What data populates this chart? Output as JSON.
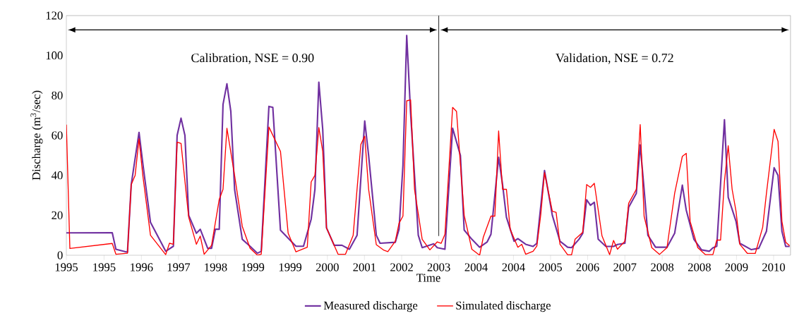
{
  "chart_data": {
    "type": "line",
    "xlabel": "Time",
    "ylabel": "Discharge  (m$^{3}$/sec)",
    "xlim": [
      "1995-02-01",
      "2010-11-09"
    ],
    "ylim": [
      0,
      120
    ],
    "xticks": [
      {
        "value": "1995-02-01",
        "label": "1995"
      },
      {
        "value": "1995-11-28",
        "label": "1995"
      },
      {
        "value": "1996-09-20",
        "label": "1996"
      },
      {
        "value": "1997-07-12",
        "label": "1997"
      },
      {
        "value": "1998-05-03",
        "label": "1998"
      },
      {
        "value": "1999-02-23",
        "label": "1999"
      },
      {
        "value": "1999-12-17",
        "label": "1999"
      },
      {
        "value": "2000-10-08",
        "label": "2000"
      },
      {
        "value": "2001-07-30",
        "label": "2001"
      },
      {
        "value": "2002-05-22",
        "label": "2002"
      },
      {
        "value": "2003-03-13",
        "label": "2003"
      },
      {
        "value": "2004-01-04",
        "label": "2004"
      },
      {
        "value": "2004-10-27",
        "label": "2004"
      },
      {
        "value": "2005-08-18",
        "label": "2005"
      },
      {
        "value": "2006-06-09",
        "label": "2006"
      },
      {
        "value": "2007-04-01",
        "label": "2007"
      },
      {
        "value": "2008-01-23",
        "label": "2008"
      },
      {
        "value": "2008-11-14",
        "label": "2008"
      },
      {
        "value": "2009-09-05",
        "label": "2009"
      },
      {
        "value": "2010-06-27",
        "label": "2010"
      }
    ],
    "yticks": [
      0,
      20,
      40,
      60,
      80,
      100,
      120
    ],
    "grid": false,
    "legend": "bottom",
    "marker": "none",
    "line_style": "solid",
    "ref_lines": [
      {
        "axis": "x",
        "value": "2003-03-13"
      }
    ],
    "annotations": [
      "Calibration,  NSE = 0.90",
      "Validation,  NSE = 0.72"
    ],
    "series": [
      {
        "name": "Measured discharge",
        "color": "#7030a0",
        "x": [
          "1995-02",
          "1996-02",
          "1996-03",
          "1996-06",
          "1996-07",
          "1996-09",
          "1996-10",
          "1996-12",
          "1997-04",
          "1997-06",
          "1997-07",
          "1997-08",
          "1997-09",
          "1997-10",
          "1997-12",
          "1998-01",
          "1998-03",
          "1998-04",
          "1998-05",
          "1998-06",
          "1998-07",
          "1998-08",
          "1998-09",
          "1998-10",
          "1998-12",
          "1999-02",
          "1999-04",
          "1999-05",
          "1999-07",
          "1999-08",
          "1999-10",
          "2000-02",
          "2000-04",
          "2000-06",
          "2000-07",
          "2000-08",
          "2000-09",
          "2000-10",
          "2000-12",
          "2001-02",
          "2001-04",
          "2001-06",
          "2001-08",
          "2001-09",
          "2001-11",
          "2001-12",
          "2002-04",
          "2002-05",
          "2002-06",
          "2002-07",
          "2002-08",
          "2002-10",
          "2002-11",
          "2003-02",
          "2003-03",
          "2003-05",
          "2003-06",
          "2003-07",
          "2003-09",
          "2003-10",
          "2003-12",
          "2004-02",
          "2004-04",
          "2004-05",
          "2004-07",
          "2004-08",
          "2004-09",
          "2004-11",
          "2004-12",
          "2005-02",
          "2005-04",
          "2005-05",
          "2005-07",
          "2005-09",
          "2005-11",
          "2006-01",
          "2006-02",
          "2006-04",
          "2006-05",
          "2006-06",
          "2006-07",
          "2006-08",
          "2006-09",
          "2006-11",
          "2007-01",
          "2007-02",
          "2007-04",
          "2007-05",
          "2007-07",
          "2007-08",
          "2007-09",
          "2007-10",
          "2007-12",
          "2008-03",
          "2008-05",
          "2008-07",
          "2008-08",
          "2008-10",
          "2008-12",
          "2009-02",
          "2009-03",
          "2009-04",
          "2009-06",
          "2009-07",
          "2009-09",
          "2009-10",
          "2010-01",
          "2010-03",
          "2010-05",
          "2010-07",
          "2010-08",
          "2010-09",
          "2010-10",
          "2010-11"
        ],
        "values": [
          11.2,
          11.3,
          3,
          1.5,
          35.4,
          61.5,
          46,
          16.5,
          2,
          4.5,
          60,
          68.6,
          60,
          20,
          11,
          13,
          3.5,
          3.5,
          13,
          13,
          75.5,
          85.8,
          72,
          33,
          8,
          4.5,
          1,
          2,
          74.5,
          74,
          12.5,
          4.5,
          4.5,
          18,
          33,
          86.6,
          63,
          13.7,
          5,
          5,
          3,
          10,
          67.2,
          50,
          10,
          6,
          6.5,
          13,
          45,
          110,
          71,
          10,
          3.8,
          5.7,
          3.8,
          3,
          34,
          63.6,
          50,
          12.6,
          8,
          4,
          6.7,
          10.5,
          49,
          35.5,
          19,
          7,
          8.3,
          5.5,
          4.4,
          6,
          42.4,
          20,
          7,
          4,
          3.8,
          8,
          11,
          27.8,
          25,
          26.5,
          8,
          4.4,
          4.4,
          5.4,
          6,
          24,
          31,
          55.2,
          33,
          10,
          4,
          4,
          11,
          35.1,
          22.6,
          8,
          2.7,
          2,
          3.7,
          4.5,
          67.8,
          29,
          17,
          6,
          2.8,
          3.5,
          12,
          43.8,
          40,
          12,
          4.4,
          4.4
        ]
      },
      {
        "name": "Simulated discharge",
        "color": "#ff0000",
        "x": [
          "1995-02",
          "1995-03",
          "1996-02",
          "1996-03",
          "1996-06",
          "1996-07",
          "1996-08",
          "1996-09",
          "1996-10",
          "1996-12",
          "1997-04",
          "1997-05",
          "1997-06",
          "1997-07",
          "1997-08",
          "1997-10",
          "1997-12",
          "1998-01",
          "1998-02",
          "1998-04",
          "1998-06",
          "1998-07",
          "1998-08",
          "1998-10",
          "1998-12",
          "1999-02",
          "1999-04",
          "1999-05",
          "1999-07",
          "1999-10",
          "1999-12",
          "2000-02",
          "2000-05",
          "2000-06",
          "2000-07",
          "2000-08",
          "2000-09",
          "2000-10",
          "2001-01",
          "2001-03",
          "2001-05",
          "2001-07",
          "2001-08",
          "2001-09",
          "2001-11",
          "2002-01",
          "2002-02",
          "2002-04",
          "2002-05",
          "2002-06",
          "2002-07",
          "2002-08",
          "2002-09",
          "2002-11",
          "2003-01",
          "2003-03",
          "2003-04",
          "2003-05",
          "2003-07",
          "2003-08",
          "2003-10",
          "2003-12",
          "2004-02",
          "2004-03",
          "2004-05",
          "2004-06",
          "2004-07",
          "2004-08",
          "2004-09",
          "2004-10",
          "2004-12",
          "2005-01",
          "2005-02",
          "2005-04",
          "2005-05",
          "2005-06",
          "2005-07",
          "2005-09",
          "2005-10",
          "2005-11",
          "2006-01",
          "2006-02",
          "2006-03",
          "2006-05",
          "2006-06",
          "2006-07",
          "2006-08",
          "2006-10",
          "2006-12",
          "2007-01",
          "2007-02",
          "2007-04",
          "2007-05",
          "2007-07",
          "2007-08",
          "2007-09",
          "2007-11",
          "2008-01",
          "2008-03",
          "2008-05",
          "2008-07",
          "2008-08",
          "2008-09",
          "2008-11",
          "2009-01",
          "2009-03",
          "2009-04",
          "2009-05",
          "2009-06",
          "2009-07",
          "2009-08",
          "2009-09",
          "2009-10",
          "2009-12",
          "2010-02",
          "2010-04",
          "2010-05",
          "2010-07",
          "2010-08",
          "2010-09",
          "2010-10",
          "2010-11"
        ],
        "values": [
          65.4,
          3.4,
          5.9,
          0.5,
          1,
          35.4,
          40,
          58.3,
          40,
          10,
          0.3,
          6,
          5.5,
          56.6,
          56,
          19,
          5.5,
          9.6,
          0.5,
          5,
          28,
          33,
          63.6,
          40,
          14.5,
          3.5,
          0,
          0.5,
          64.2,
          52,
          11,
          1.7,
          4,
          36.7,
          40,
          63.9,
          52,
          13.7,
          0.5,
          0.5,
          10,
          55.4,
          59.6,
          33,
          5.3,
          2.5,
          1.8,
          7,
          16,
          19.6,
          77.3,
          77.8,
          33,
          8,
          2.7,
          6.7,
          6,
          10.5,
          74,
          72,
          20,
          3,
          0,
          9,
          19.6,
          19.6,
          62.2,
          33,
          33,
          13,
          4,
          5.5,
          0.5,
          2,
          4.6,
          20.3,
          41.3,
          22,
          21.5,
          5.5,
          0.2,
          0.2,
          8,
          11.5,
          35.4,
          34,
          36,
          9.7,
          0.3,
          7.4,
          3,
          7,
          26,
          33,
          65.4,
          19.5,
          3.8,
          0.4,
          3.8,
          31,
          49.5,
          51,
          17,
          3.8,
          0.3,
          0.3,
          7.6,
          7.6,
          37,
          54.8,
          33,
          22,
          5.5,
          0.9,
          0.9,
          14,
          31,
          63,
          57,
          17,
          6.5,
          4.8
        ]
      }
    ]
  }
}
